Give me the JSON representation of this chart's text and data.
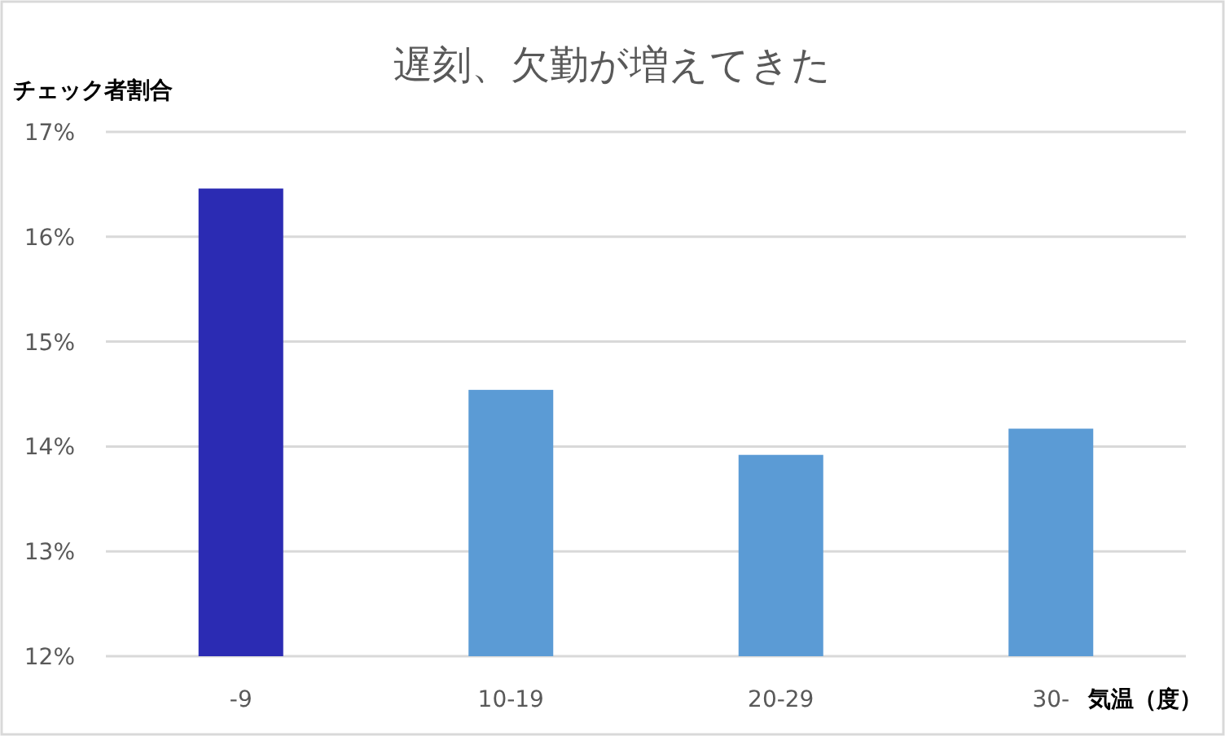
{
  "chart_data": {
    "type": "bar",
    "title": "遅刻、欠勤が増えてきた",
    "ylabel": "チェック者割合",
    "xlabel": "気温（度）",
    "categories": [
      "-9",
      "10-19",
      "20-29",
      "30-"
    ],
    "values": [
      16.46,
      14.54,
      13.92,
      14.17
    ],
    "colors": [
      "#2b2bb3",
      "#5b9bd5",
      "#5b9bd5",
      "#5b9bd5"
    ],
    "ylim": [
      12,
      17
    ],
    "yticks": [
      {
        "value": 12,
        "label": "12%"
      },
      {
        "value": 13,
        "label": "13%"
      },
      {
        "value": 14,
        "label": "14%"
      },
      {
        "value": 15,
        "label": "15%"
      },
      {
        "value": 16,
        "label": "16%"
      },
      {
        "value": 17,
        "label": "17%"
      }
    ],
    "grid": "y"
  }
}
